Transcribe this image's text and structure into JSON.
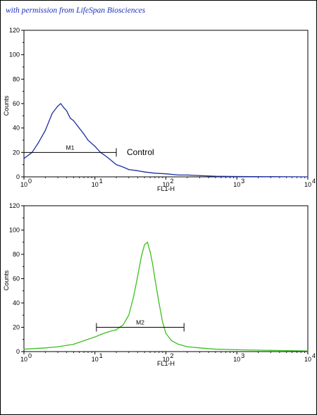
{
  "watermark": "with permission from LifeSpan Biosciences",
  "colors": {
    "control": "#1f2fa0",
    "sample": "#3cbf1e"
  },
  "chart_data": [
    {
      "type": "line",
      "title": "",
      "xlabel": "FL1-H",
      "ylabel": "Counts",
      "xscale": "log",
      "xlim": [
        1,
        10000
      ],
      "ylim": [
        0,
        120
      ],
      "yticks": [
        0,
        20,
        40,
        60,
        80,
        100,
        120
      ],
      "xticks": [
        1,
        10,
        100,
        1000,
        10000
      ],
      "xtick_labels": [
        {
          "base": "10",
          "exp": "0"
        },
        {
          "base": "10",
          "exp": "1"
        },
        {
          "base": "10",
          "exp": "2"
        },
        {
          "base": "10",
          "exp": "3"
        },
        {
          "base": "10",
          "exp": "4"
        }
      ],
      "grid": false,
      "annotation": "Control",
      "marker": {
        "label": "M1",
        "x_start": 1,
        "x_end": 20,
        "y": 20
      },
      "series": [
        {
          "color": "#1f2fa0",
          "x": [
            1,
            1.3,
            1.6,
            2,
            2.5,
            3,
            3.3,
            3.6,
            4,
            4.5,
            5,
            6,
            7,
            8,
            10,
            12,
            15,
            20,
            25,
            30,
            40,
            50,
            70,
            100,
            150,
            200,
            300,
            500,
            1000,
            10000
          ],
          "y": [
            15,
            20,
            28,
            38,
            52,
            58,
            60,
            57,
            54,
            48,
            46,
            40,
            35,
            30,
            25,
            20,
            16,
            10,
            8,
            6,
            5,
            4,
            3,
            2.5,
            1.5,
            1.5,
            1,
            0.5,
            0.3,
            0
          ]
        }
      ]
    },
    {
      "type": "line",
      "title": "",
      "xlabel": "FL1-H",
      "ylabel": "Counts",
      "xscale": "log",
      "xlim": [
        1,
        10000
      ],
      "ylim": [
        0,
        120
      ],
      "yticks": [
        0,
        20,
        40,
        60,
        80,
        100,
        120
      ],
      "xticks": [
        1,
        10,
        100,
        1000,
        10000
      ],
      "xtick_labels": [
        {
          "base": "10",
          "exp": "0"
        },
        {
          "base": "10",
          "exp": "1"
        },
        {
          "base": "10",
          "exp": "2"
        },
        {
          "base": "10",
          "exp": "3"
        },
        {
          "base": "10",
          "exp": "4"
        }
      ],
      "grid": false,
      "annotation": "",
      "marker": {
        "label": "M2",
        "x_start": 10.5,
        "x_end": 180,
        "y": 20
      },
      "series": [
        {
          "color": "#3cbf1e",
          "x": [
            1,
            2,
            3,
            5,
            7,
            10,
            12,
            15,
            20,
            25,
            30,
            35,
            40,
            45,
            50,
            55,
            60,
            65,
            70,
            80,
            90,
            100,
            120,
            150,
            200,
            300,
            500,
            1000,
            3000,
            10000
          ],
          "y": [
            2,
            3,
            4,
            6,
            9,
            12,
            14,
            16,
            18,
            22,
            30,
            45,
            62,
            78,
            88,
            90,
            82,
            72,
            60,
            40,
            24,
            15,
            9,
            6,
            4,
            3,
            2,
            1.5,
            1,
            0.5
          ]
        }
      ]
    }
  ]
}
